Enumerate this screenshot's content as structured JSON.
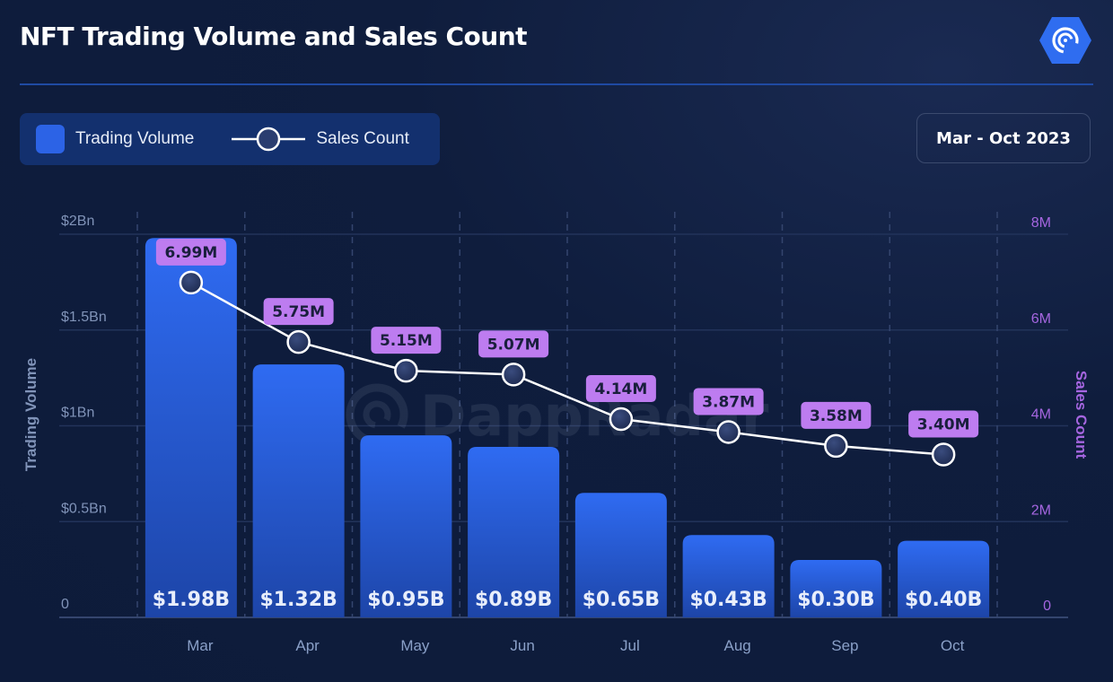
{
  "title": "NFT Trading Volume and Sales Count",
  "logo_icon": "dappradar-logo-icon",
  "watermark": "DappRadar",
  "legend": {
    "items": [
      {
        "label": "Trading Volume",
        "icon": "square-swatch-icon",
        "color": "#2c63e6"
      },
      {
        "label": "Sales Count",
        "icon": "line-marker-icon",
        "color": "#ffffff"
      }
    ]
  },
  "date_range": "Mar - Oct 2023",
  "colors": {
    "bar_top": "#2f6bf2",
    "bar_bottom": "#1d45a8",
    "label_bg": "#bd7cf0",
    "label_text": "#1a1f3d",
    "left_axis": "#8093b8",
    "right_axis": "#a566e0",
    "line": "#ffffff"
  },
  "chart_data": {
    "type": "bar+line",
    "title": "NFT Trading Volume and Sales Count",
    "categories": [
      "Mar",
      "Apr",
      "May",
      "Jun",
      "Jul",
      "Aug",
      "Sep",
      "Oct"
    ],
    "series": [
      {
        "name": "Trading Volume",
        "type": "bar",
        "axis": "left",
        "unit": "Bn USD",
        "values": [
          1.98,
          1.32,
          0.95,
          0.89,
          0.65,
          0.43,
          0.3,
          0.4
        ],
        "labels": [
          "$1.98B",
          "$1.32B",
          "$0.95B",
          "$0.89B",
          "$0.65B",
          "$0.43B",
          "$0.30B",
          "$0.40B"
        ]
      },
      {
        "name": "Sales Count",
        "type": "line",
        "axis": "right",
        "unit": "M",
        "values": [
          6.99,
          5.75,
          5.15,
          5.07,
          4.14,
          3.87,
          3.58,
          3.4
        ],
        "labels": [
          "6.99M",
          "5.75M",
          "5.15M",
          "5.07M",
          "4.14M",
          "3.87M",
          "3.58M",
          "3.40M"
        ]
      }
    ],
    "ylabel_left": "Trading Volume",
    "ylabel_right": "Sales Count",
    "ylim_left": [
      0,
      2
    ],
    "ylim_right": [
      0,
      8
    ],
    "yticks_left": [
      0,
      0.5,
      1,
      1.5,
      2
    ],
    "yticks_left_labels": [
      "0",
      "$0.5Bn",
      "$1Bn",
      "$1.5Bn",
      "$2Bn"
    ],
    "yticks_right": [
      0,
      2,
      4,
      6,
      8
    ],
    "yticks_right_labels": [
      "0",
      "2M",
      "4M",
      "6M",
      "8M"
    ],
    "grid": true,
    "legend_position": "top-left"
  }
}
